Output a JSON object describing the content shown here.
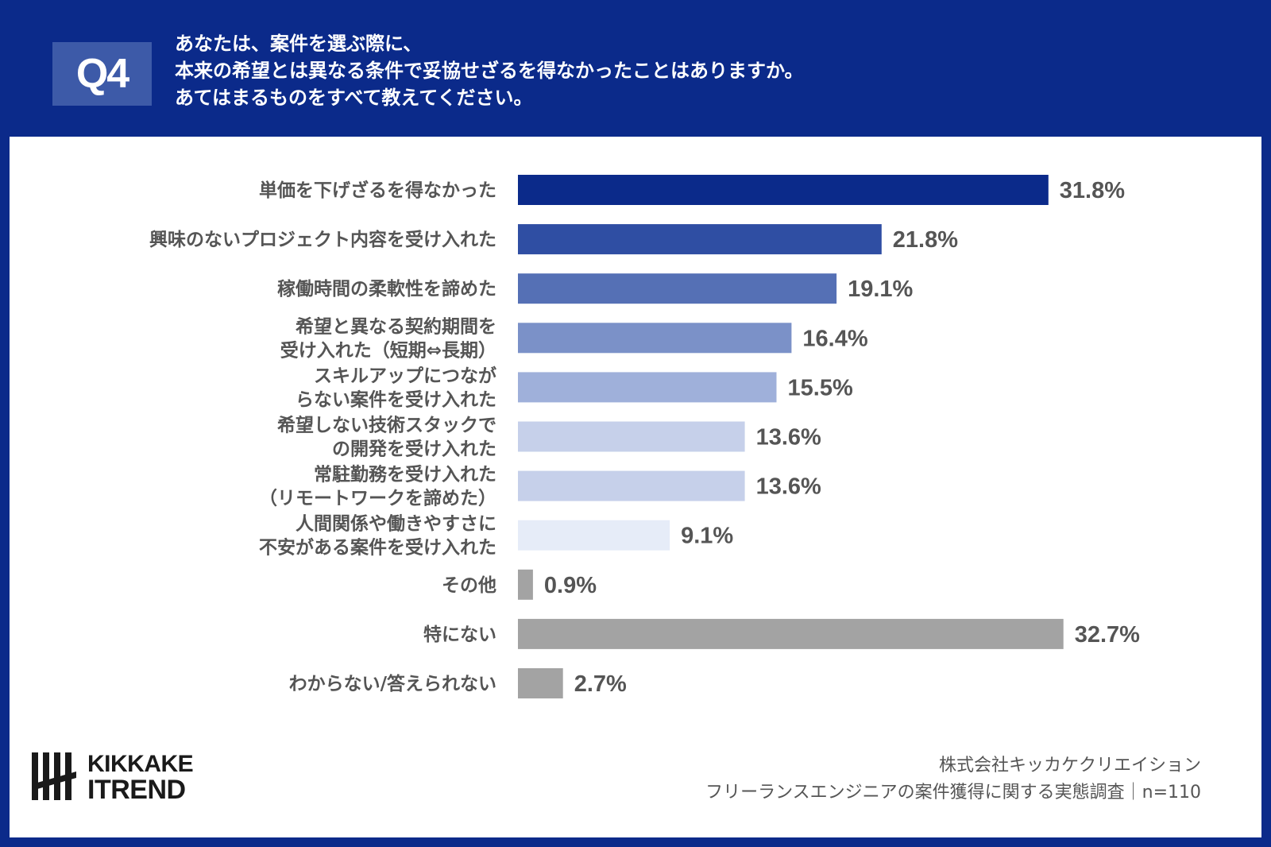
{
  "header": {
    "badge": "Q4",
    "question_lines": [
      "あなたは、案件を選ぶ際に、",
      "本来の希望とは異なる条件で妥協せざるを得なかったことはありますか。",
      "あてはまるものをすべて教えてください。"
    ]
  },
  "chart_data": {
    "type": "bar",
    "orientation": "horizontal",
    "unit": "%",
    "xlim": [
      0,
      40
    ],
    "grid": false,
    "categories": [
      [
        "単価を下げざるを得なかった"
      ],
      [
        "興味のないプロジェクト内容を受け入れた"
      ],
      [
        "稼働時間の柔軟性を諦めた"
      ],
      [
        "希望と異なる契約期間を",
        "受け入れた（短期⇔長期）"
      ],
      [
        "スキルアップにつなが",
        "らない案件を受け入れた"
      ],
      [
        "希望しない技術スタックで",
        "の開発を受け入れた"
      ],
      [
        "常駐勤務を受け入れた",
        "（リモートワークを諦めた）"
      ],
      [
        "人間関係や働きやすさに",
        "不安がある案件を受け入れた"
      ],
      [
        "その他"
      ],
      [
        "特にない"
      ],
      [
        "わからない/答えられない"
      ]
    ],
    "values": [
      31.8,
      21.8,
      19.1,
      16.4,
      15.5,
      13.6,
      13.6,
      9.1,
      0.9,
      32.7,
      2.7
    ],
    "value_labels": [
      "31.8%",
      "21.8%",
      "19.1%",
      "16.4%",
      "15.5%",
      "13.6%",
      "13.6%",
      "9.1%",
      "0.9%",
      "32.7%",
      "2.7%"
    ],
    "colors": [
      "#0b2a8a",
      "#2f4ea3",
      "#5570b5",
      "#7b91c8",
      "#9fb0da",
      "#c6d0ea",
      "#c6d0ea",
      "#e6ecf8",
      "#a3a3a3",
      "#a3a3a3",
      "#a3a3a3"
    ]
  },
  "logo": {
    "line1": "KIKKAKE",
    "line2": "ITREND"
  },
  "source": {
    "line1": "株式会社キッカケクリエイション",
    "line2": "フリーランスエンジニアの案件獲得に関する実態調査｜n=110"
  }
}
